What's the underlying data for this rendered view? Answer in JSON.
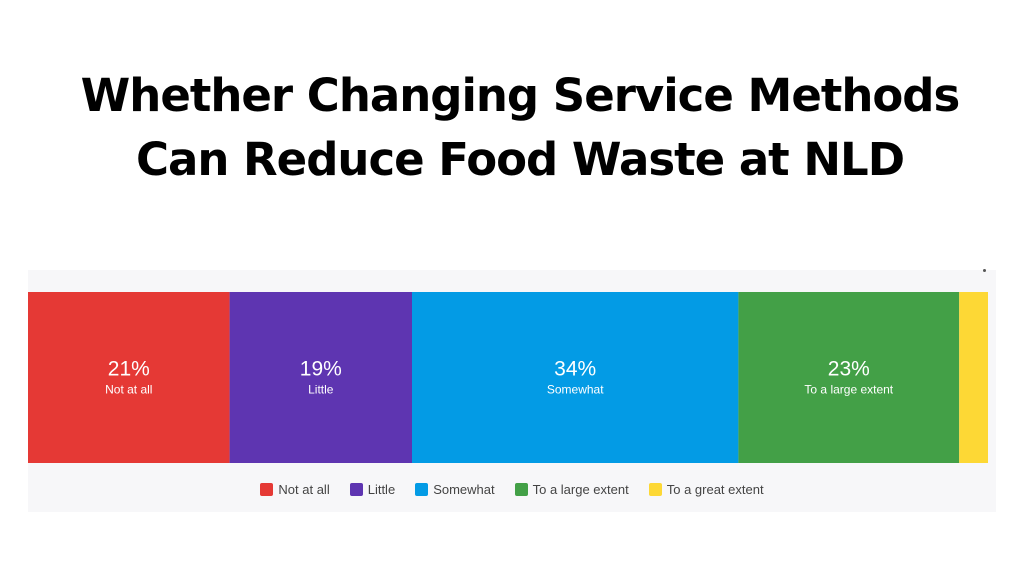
{
  "chart_data": {
    "type": "bar",
    "orientation": "horizontal-stacked-100",
    "title_lines": [
      "Whether Changing Service Methods",
      "Can Reduce Food Waste at NLD"
    ],
    "categories": [
      "Not at all",
      "Little",
      "Somewhat",
      "To a large extent",
      "To a great extent"
    ],
    "values": [
      21,
      19,
      34,
      23,
      3
    ],
    "value_labels": [
      "21%",
      "19%",
      "34%",
      "23%",
      ""
    ],
    "colors": [
      "#e53935",
      "#5e35b1",
      "#039be5",
      "#43a047",
      "#fdd835"
    ],
    "xlim": [
      0,
      100
    ],
    "legend": "bottom-center",
    "grid": false
  }
}
